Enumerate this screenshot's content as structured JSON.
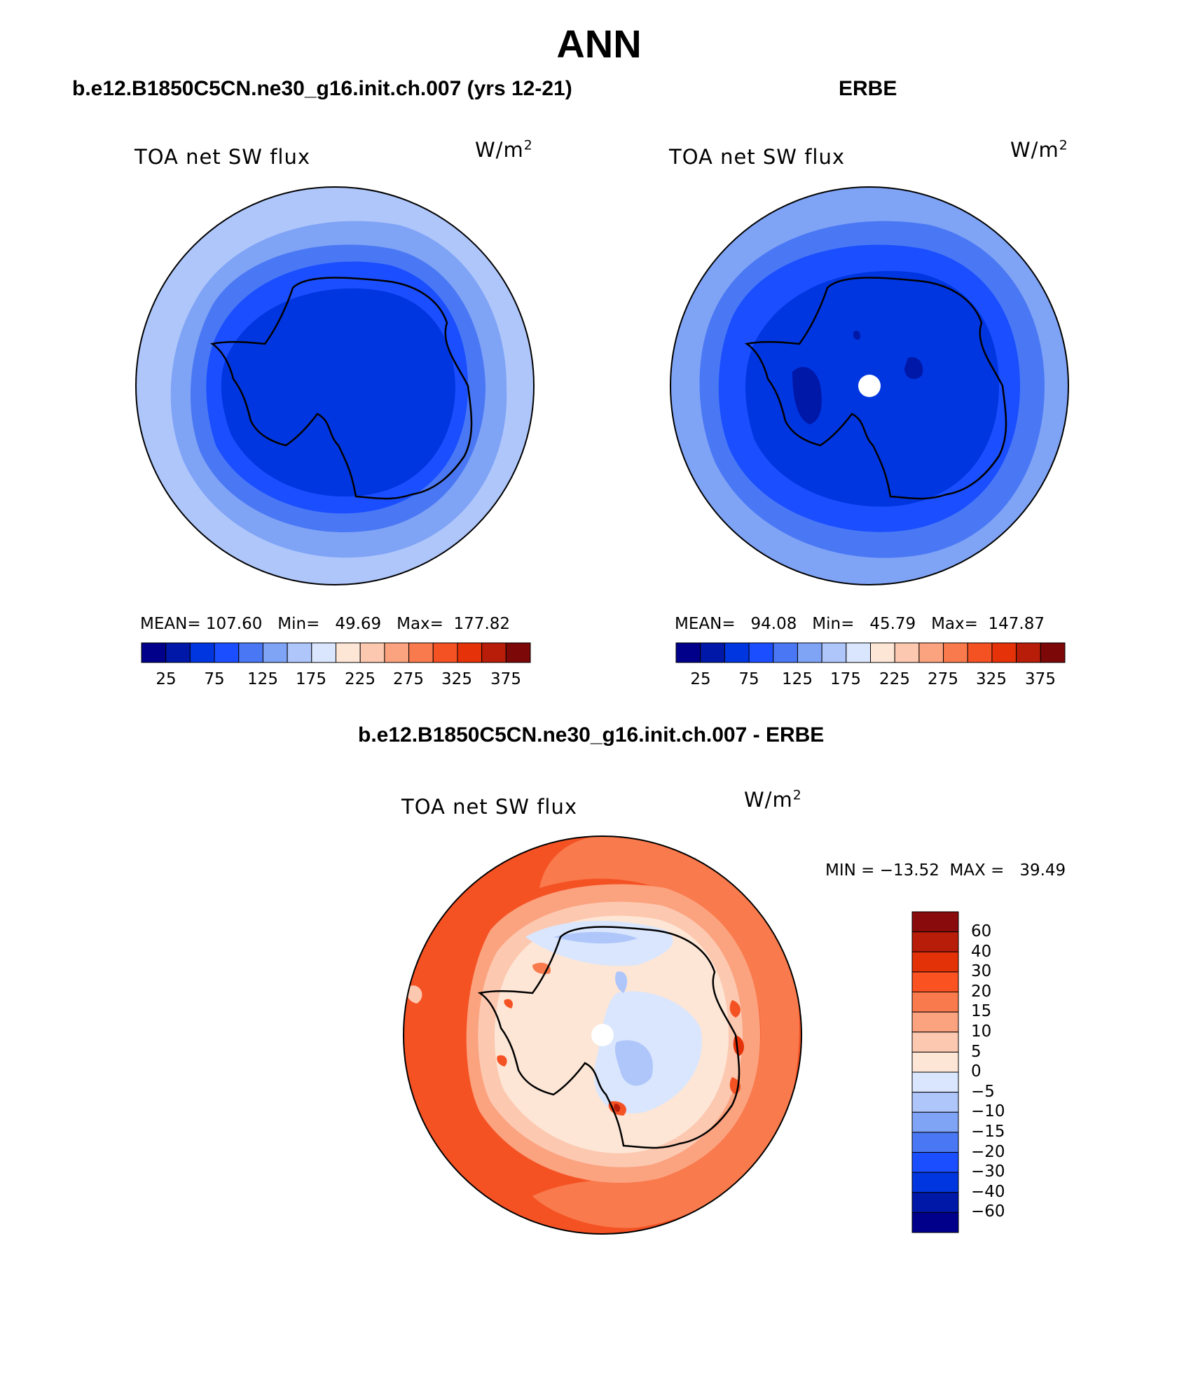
{
  "title": "ANN",
  "panels": [
    {
      "title": "b.e12.B1850C5CN.ne30_g16.init.ch.007 (yrs 12-21)",
      "variable": "TOA net SW flux",
      "units_base": "W/m",
      "units_exp": "2",
      "stats": "MEAN= 107.60   Min=   49.69   Max=  177.82",
      "colorbar_ticks": [
        "25",
        "75",
        "125",
        "175",
        "225",
        "275",
        "325",
        "375"
      ]
    },
    {
      "title": "ERBE",
      "variable": "TOA net SW flux",
      "units_base": "W/m",
      "units_exp": "2",
      "stats": "MEAN=   94.08   Min=   45.79   Max=  147.87",
      "colorbar_ticks": [
        "25",
        "75",
        "125",
        "175",
        "225",
        "275",
        "325",
        "375"
      ]
    },
    {
      "title": "b.e12.B1850C5CN.ne30_g16.init.ch.007 - ERBE",
      "variable": "TOA net SW flux",
      "units_base": "W/m",
      "units_exp": "2",
      "stats": "MIN = −13.52  MAX =   39.49",
      "colorbar_ticks": [
        "60",
        "40",
        "30",
        "20",
        "15",
        "10",
        "5",
        "0",
        "−5",
        "−10",
        "−15",
        "−20",
        "−30",
        "−40",
        "−60"
      ]
    }
  ],
  "colors": {
    "abs_scale": [
      "#00008b",
      "#0018a8",
      "#0036e0",
      "#1a4eff",
      "#4a78f5",
      "#7fa3f5",
      "#afc6fb",
      "#d9e6fd",
      "#fde6d6",
      "#fcc8b0",
      "#fba27f",
      "#f97a4c",
      "#f55224",
      "#e63208",
      "#b71d08",
      "#7c0808"
    ],
    "diff_scale": [
      "#8a0b0b",
      "#b71d08",
      "#e33208",
      "#fb5222",
      "#f97a4c",
      "#fba27f",
      "#fcc8b0",
      "#fde6d6",
      "#d9e6fd",
      "#afc6fb",
      "#7fa3f5",
      "#4a78f5",
      "#1a4eff",
      "#0036e0",
      "#0018a8",
      "#00008b"
    ]
  },
  "chart_data": [
    {
      "type": "heatmap",
      "projection": "south polar stereographic",
      "contour_levels": [
        0,
        25,
        50,
        75,
        100,
        125,
        150,
        175,
        200,
        225,
        250,
        275,
        300,
        325,
        350,
        375
      ],
      "stats": {
        "mean": 107.6,
        "min": 49.69,
        "max": 177.82
      }
    },
    {
      "type": "heatmap",
      "projection": "south polar stereographic",
      "contour_levels": [
        0,
        25,
        50,
        75,
        100,
        125,
        150,
        175,
        200,
        225,
        250,
        275,
        300,
        325,
        350,
        375
      ],
      "stats": {
        "mean": 94.08,
        "min": 45.79,
        "max": 147.87
      }
    },
    {
      "type": "heatmap",
      "projection": "south polar stereographic",
      "contour_levels": [
        -60,
        -40,
        -30,
        -20,
        -15,
        -10,
        -5,
        0,
        5,
        10,
        15,
        20,
        30,
        40,
        60
      ],
      "stats": {
        "min": -13.52,
        "max": 39.49
      }
    }
  ]
}
